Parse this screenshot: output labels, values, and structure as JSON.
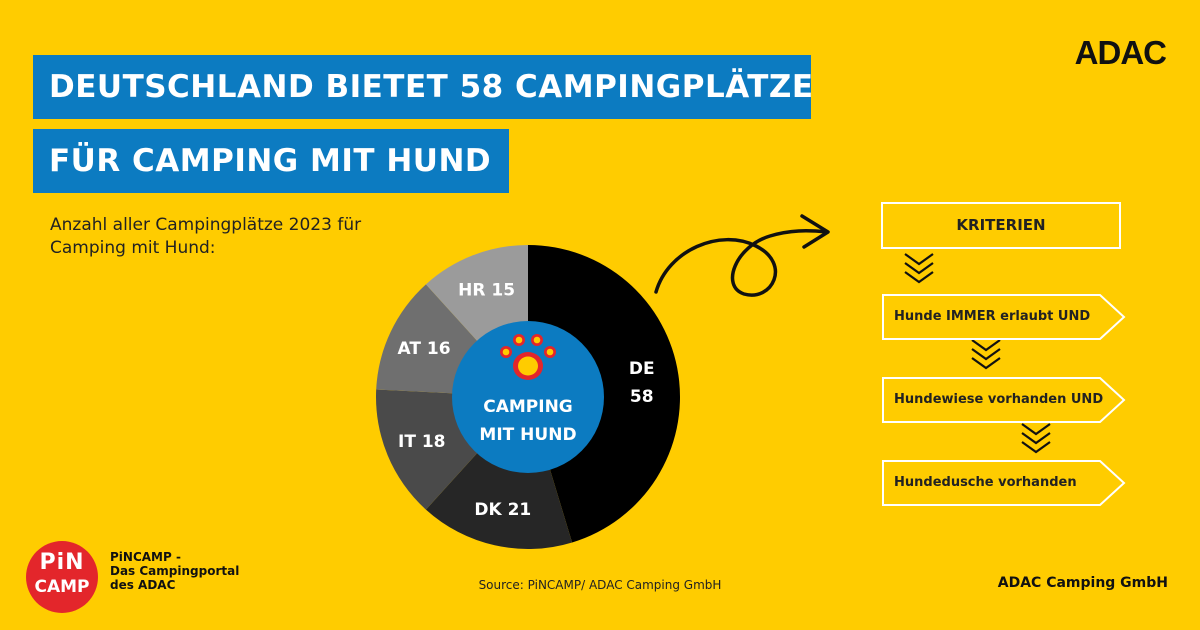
{
  "header": {
    "title_line1": "DEUTSCHLAND BIETET 58 CAMPINGPLÄTZE",
    "title_line2": "FÜR CAMPING MIT HUND",
    "subtitle_line1": "Anzahl aller Campingplätze 2023 für",
    "subtitle_line2": "Camping mit Hund:"
  },
  "brand": {
    "logo": "ADAC",
    "pincamp_badge_line1": "PiN",
    "pincamp_badge_line2": "CAMP",
    "pincamp_text_line1": "PiNCAMP -",
    "pincamp_text_line2": "Das Campingportal",
    "pincamp_text_line3": "des ADAC",
    "company": "ADAC Camping GmbH"
  },
  "source": "Source: PiNCAMP/ ADAC Camping GmbH",
  "chart_data": {
    "type": "pie",
    "variant": "donut",
    "center_label_line1": "CAMPING",
    "center_label_line2": "MIT HUND",
    "center_icon": "paw-icon",
    "categories": [
      "DE",
      "DK",
      "IT",
      "AT",
      "HR"
    ],
    "values": [
      58,
      21,
      18,
      16,
      15
    ],
    "segment_labels": [
      {
        "line1": "DE",
        "line2": "58"
      },
      {
        "line1": "DK 21"
      },
      {
        "line1": "IT 18"
      },
      {
        "line1": "AT 16"
      },
      {
        "line1": "HR 15"
      }
    ],
    "colors": [
      "#000000",
      "#262626",
      "#4a4a4a",
      "#6f6f6f",
      "#9b9b9b"
    ],
    "center_color": "#0C7BC1"
  },
  "criteria": {
    "title": "KRITERIEN",
    "steps": [
      "Hunde IMMER erlaubt UND",
      "Hundewiese vorhanden UND",
      "Hundedusche vorhanden"
    ]
  },
  "colors": {
    "background": "#FFCC00",
    "accent_blue": "#0C7BC1",
    "pincamp_red": "#E3262B"
  }
}
